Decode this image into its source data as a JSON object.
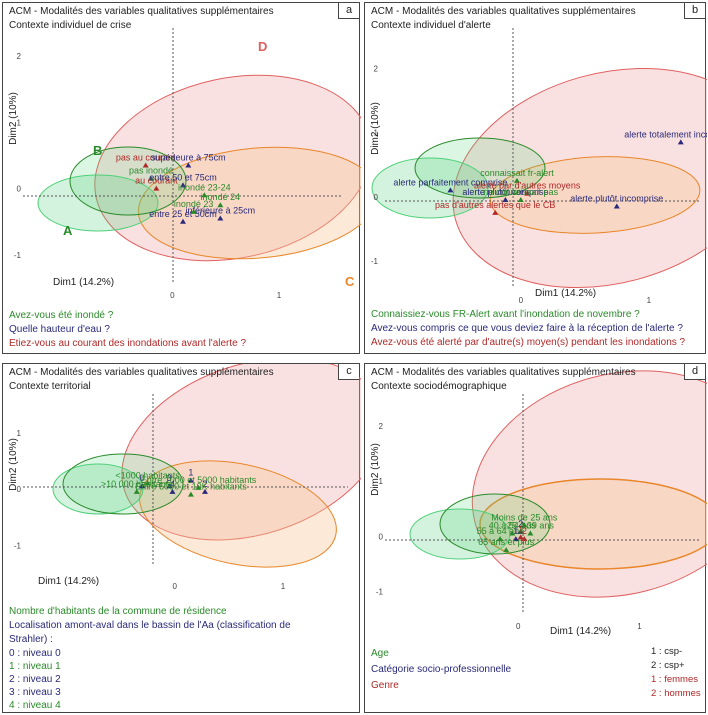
{
  "colors": {
    "green": "#2a8a2a",
    "navy": "#2a2a7a",
    "red": "#b02828",
    "orange": "#e8862a",
    "green_fill": "#4fd07a",
    "red_fill": "#f2a8a8",
    "orange_fill": "#f7c89a"
  },
  "axis": {
    "xlabel": "Dim1 (14.2%)",
    "ylabel": "Dim2 (10%)"
  },
  "panels": [
    {
      "letter": "a",
      "title": "ACM - Modalités des variables qualitatives supplémentaires",
      "subtitle": "Contexte individuel de crise",
      "legend": [
        "Avez-vous été inondé  ?",
        "Quelle hauteur d'eau ?",
        "Etiez-vous au courant des inondations avant l'alerte ?"
      ]
    },
    {
      "letter": "b",
      "title": "ACM - Modalités des variables qualitatives supplémentaires",
      "subtitle": "Contexte individuel d'alerte",
      "legend": [
        "Connaissiez-vous FR-Alert avant l'inondation de novembre ?",
        "Avez-vous compris ce que vous deviez faire à la réception de l'alerte ?",
        "Avez-vous été alerté par d'autre(s) moyen(s) pendant les inondations ?"
      ]
    },
    {
      "letter": "c",
      "title": "ACM - Modalités des variables qualitatives supplémentaires",
      "subtitle": "Contexte territorial",
      "legend": [
        "Nombre d'habitants de la commune de résidence",
        "Localisation amont-aval dans le bassin de l'Aa (classification de",
        "Strahler) :",
        "0 : niveau 0",
        "1 : niveau 1",
        "2 : niveau 2",
        "3 : niveau 3",
        "4 : niveau 4"
      ]
    },
    {
      "letter": "d",
      "title": "ACM - Modalités des variables qualitatives supplémentaires",
      "subtitle": "Contexte sociodémographique",
      "legend": [
        "Age",
        "Catégorie socio-professionnelle",
        "Genre"
      ],
      "legend_right": [
        "1 : csp-",
        "2 : csp+",
        "1 : femmes",
        "2 : hommes"
      ]
    }
  ],
  "chart_data": [
    {
      "type": "scatter",
      "panel": "a",
      "xlim": [
        -1.4,
        1.6
      ],
      "ylim": [
        -1.5,
        2.2
      ],
      "xticks": [
        0,
        1
      ],
      "yticks": [
        -1,
        0,
        1,
        2
      ],
      "group_labels": [
        "A",
        "B",
        "C",
        "D"
      ],
      "points": [
        {
          "label": "pas au courant",
          "x": -0.25,
          "y": 0.35,
          "color": "red"
        },
        {
          "label": "pas inondé",
          "x": -0.2,
          "y": 0.15,
          "color": "green"
        },
        {
          "label": "au courant",
          "x": -0.15,
          "y": 0.0,
          "color": "red"
        },
        {
          "label": "supérieure à 75cm",
          "x": 0.15,
          "y": 0.35,
          "color": "navy"
        },
        {
          "label": "entre 50 et 75cm",
          "x": 0.1,
          "y": 0.05,
          "color": "navy"
        },
        {
          "label": "inondé 23-24",
          "x": 0.3,
          "y": -0.1,
          "color": "green"
        },
        {
          "label": "inondé 24",
          "x": 0.45,
          "y": -0.25,
          "color": "green"
        },
        {
          "label": "entre 25 et 50cm",
          "x": 0.1,
          "y": -0.5,
          "color": "navy"
        },
        {
          "label": "inférieure à 25cm",
          "x": 0.45,
          "y": -0.45,
          "color": "navy"
        },
        {
          "label": "inondé 23",
          "x": 0.2,
          "y": -0.35,
          "color": "green"
        }
      ]
    },
    {
      "type": "scatter",
      "panel": "b",
      "xlim": [
        -1.1,
        1.4
      ],
      "ylim": [
        -1.5,
        2.4
      ],
      "xticks": [
        0,
        1
      ],
      "yticks": [
        -1,
        0,
        1,
        2
      ],
      "points": [
        {
          "label": "alerte totalement incomprise",
          "x": 1.25,
          "y": 0.85,
          "color": "navy"
        },
        {
          "label": "alerte parfaitement comprise",
          "x": -0.55,
          "y": 0.1,
          "color": "navy"
        },
        {
          "label": "connaissait fr-alert",
          "x": -0.03,
          "y": 0.25,
          "color": "green"
        },
        {
          "label": "alerté par d'autres moyens",
          "x": 0.05,
          "y": 0.05,
          "color": "red"
        },
        {
          "label": "alerte plutôt comprise",
          "x": -0.12,
          "y": -0.05,
          "color": "navy"
        },
        {
          "label": "ne connaissait pas",
          "x": 0.0,
          "y": -0.05,
          "color": "green"
        },
        {
          "label": "pas d'autres alertes que le CB",
          "x": -0.2,
          "y": -0.25,
          "color": "red"
        },
        {
          "label": "alerte plutôt incomprise",
          "x": 0.75,
          "y": -0.15,
          "color": "navy"
        }
      ]
    },
    {
      "type": "scatter",
      "panel": "c",
      "xlim": [
        -1.4,
        1.6
      ],
      "ylim": [
        -1.6,
        1.6
      ],
      "xticks": [
        0,
        1
      ],
      "yticks": [
        -1,
        0,
        1
      ],
      "points": [
        {
          "label": "0",
          "x": -0.3,
          "y": 0.05,
          "color": "navy"
        },
        {
          "label": "<1000 habitants",
          "x": -0.25,
          "y": 0.1,
          "color": "green"
        },
        {
          "label": "1",
          "x": 0.15,
          "y": 0.15,
          "color": "navy"
        },
        {
          "label": "3",
          "x": -0.05,
          "y": 0.05,
          "color": "navy"
        },
        {
          "label": "Entre 1000 et 5000 habitants",
          "x": 0.22,
          "y": 0.02,
          "color": "green"
        },
        {
          "label": ">10 000 habitants",
          "x": -0.35,
          "y": -0.05,
          "color": "green"
        },
        {
          "label": "4",
          "x": -0.02,
          "y": -0.05,
          "color": "navy"
        },
        {
          "label": "2",
          "x": 0.28,
          "y": -0.05,
          "color": "navy"
        },
        {
          "label": "Entre 5000 et 10K habitants",
          "x": 0.15,
          "y": -0.1,
          "color": "green"
        }
      ]
    },
    {
      "type": "scatter",
      "panel": "d",
      "xlim": [
        -1.1,
        1.5
      ],
      "ylim": [
        -1.5,
        2.4
      ],
      "xticks": [
        0,
        1
      ],
      "yticks": [
        -1,
        0,
        1,
        2
      ],
      "points": [
        {
          "label": "Moins de 25 ans",
          "x": 0.05,
          "y": 0.2,
          "color": "green"
        },
        {
          "label": "25 à 39 ans",
          "x": 0.1,
          "y": 0.05,
          "color": "green"
        },
        {
          "label": "40 à 54 ans",
          "x": -0.05,
          "y": 0.05,
          "color": "green"
        },
        {
          "label": "2",
          "x": 0.02,
          "y": 0.08,
          "color": "navy"
        },
        {
          "label": "2",
          "x": 0.05,
          "y": -0.05,
          "color": "red"
        },
        {
          "label": "1",
          "x": -0.02,
          "y": -0.05,
          "color": "navy"
        },
        {
          "label": "1",
          "x": 0.02,
          "y": -0.02,
          "color": "red"
        },
        {
          "label": "55 à 64 ans",
          "x": -0.15,
          "y": -0.05,
          "color": "green"
        },
        {
          "label": "65 ans et plus",
          "x": -0.1,
          "y": -0.25,
          "color": "green"
        }
      ]
    }
  ]
}
